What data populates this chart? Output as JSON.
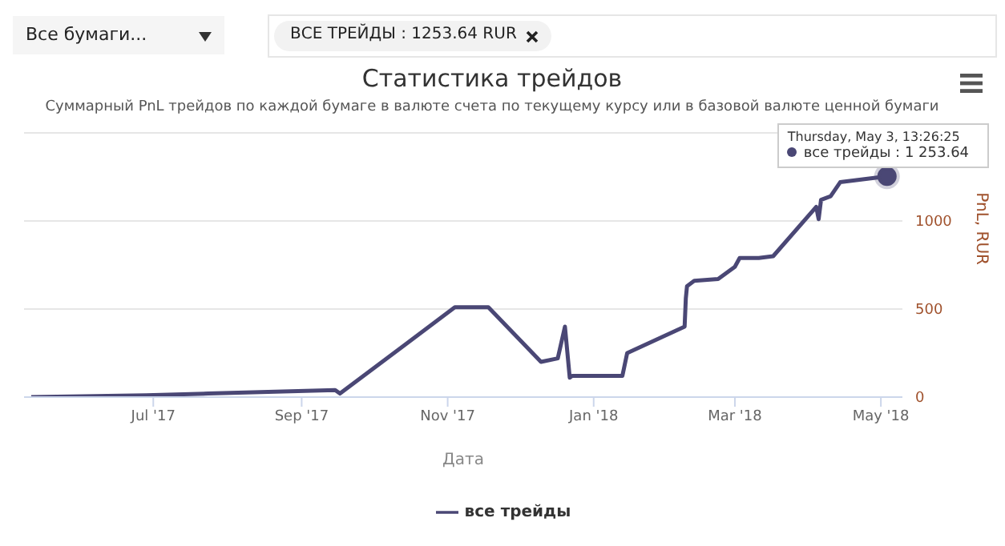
{
  "chart_data": {
    "type": "line",
    "title": "Статистика трейдов",
    "subtitle": "Суммарный PnL трейдов по каждой бумаге в валюте счета по текущему курсу или в базовой валюте ценной бумаги",
    "xlabel": "Дата",
    "ylabel": "PnL, RUR",
    "annotations": [
      "Все бумаги...",
      "ВСЕ ТРЕЙДЫ : 1253.64 RUR",
      {
        "text": "Thursday, May 3, 13:26:25",
        "x": "2018-05-03T13:26",
        "y": 1253.64
      },
      "все трейды : 1 253.64"
    ],
    "x": [
      "2017-05-11",
      "2017-06-28",
      "2017-07-24",
      "2017-09-15",
      "2017-09-17",
      "2017-11-04",
      "2017-11-18",
      "2017-12-10",
      "2017-12-17",
      "2017-12-20",
      "2017-12-22",
      "2017-12-23",
      "2018-01-13",
      "2018-01-15",
      "2018-02-08",
      "2018-02-08T12:00",
      "2018-02-09",
      "2018-02-12",
      "2018-02-22",
      "2018-03-01",
      "2018-03-03",
      "2018-03-11",
      "2018-03-17",
      "2018-04-04",
      "2018-04-05",
      "2018-04-06",
      "2018-04-10",
      "2018-04-14",
      "2018-05-03T13:26"
    ],
    "series": [
      {
        "name": "все трейды",
        "color": "#4a4775",
        "values": [
          0,
          10,
          20,
          40,
          20,
          510,
          510,
          200,
          220,
          400,
          110,
          120,
          120,
          250,
          400,
          560,
          630,
          660,
          670,
          740,
          790,
          790,
          800,
          1080,
          1010,
          1120,
          1140,
          1220,
          1253.64
        ]
      }
    ],
    "xlim": [
      "2017-05-08",
      "2018-05-10"
    ],
    "xticks": [
      {
        "value": "2017-07-01",
        "label": "Jul '17"
      },
      {
        "value": "2017-09-01",
        "label": "Sep '17"
      },
      {
        "value": "2017-11-01",
        "label": "Nov '17"
      },
      {
        "value": "2018-01-01",
        "label": "Jan '18"
      },
      {
        "value": "2018-03-01",
        "label": "Mar '18"
      },
      {
        "value": "2018-05-01",
        "label": "May '18"
      }
    ],
    "ylim": [
      0,
      1500
    ],
    "yticks": [
      0,
      500,
      1000,
      {
        "value": 1500,
        "label": null
      }
    ],
    "grid": "y",
    "legend": "bottom",
    "marker": "none"
  }
}
